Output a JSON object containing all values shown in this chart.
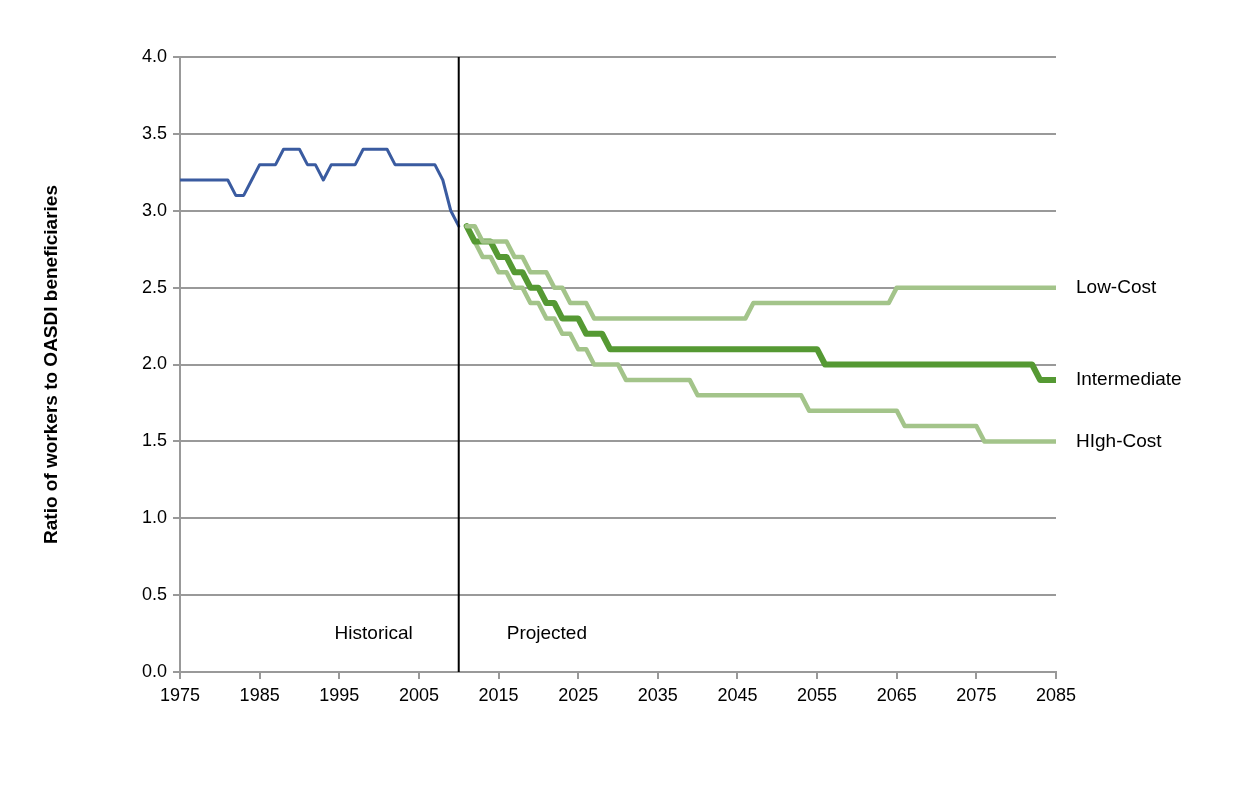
{
  "chart_data": {
    "type": "line",
    "ylabel": "Ratio of workers to OASDI beneficiaries",
    "xlim": [
      1975,
      2085
    ],
    "xticks": [
      1975,
      1985,
      1995,
      2005,
      2015,
      2025,
      2035,
      2045,
      2055,
      2065,
      2075,
      2085
    ],
    "ylim": [
      0,
      4
    ],
    "yticks": [
      {
        "value": 0,
        "label": "0.0"
      },
      0.5,
      {
        "value": 1,
        "label": "1.0"
      },
      1.5,
      {
        "value": 2,
        "label": "2.0"
      },
      2.5,
      {
        "value": 3,
        "label": "3.0"
      },
      3.5,
      {
        "value": 4,
        "label": "4.0"
      }
    ],
    "grid": "y",
    "legend": false,
    "marker": "none",
    "line_style": "solid",
    "ref_lines": [
      {
        "axis": "x",
        "value": 2010,
        "color": "#000000"
      }
    ],
    "annotations": [
      "Historical",
      "Projected"
    ],
    "series": [
      {
        "color": "#3a5ba0",
        "x": [
          1975,
          1981,
          1982,
          1983,
          1984,
          1985,
          1987,
          1988,
          1990,
          1991,
          1992,
          1993,
          1994,
          1997,
          1998,
          2001,
          2002,
          2007,
          2008,
          2009,
          2010
        ],
        "values": [
          3.2,
          3.2,
          3.1,
          3.1,
          3.2,
          3.3,
          3.3,
          3.4,
          3.4,
          3.3,
          3.3,
          3.2,
          3.3,
          3.3,
          3.4,
          3.4,
          3.3,
          3.3,
          3.2,
          3.0,
          2.9
        ]
      },
      {
        "name": "Low-Cost",
        "color": "#a3c48a",
        "x": [
          2011,
          2012,
          2013,
          2016,
          2017,
          2018,
          2019,
          2021,
          2022,
          2023,
          2024,
          2026,
          2027,
          2046,
          2047,
          2064,
          2065,
          2085
        ],
        "values": [
          2.9,
          2.9,
          2.8,
          2.8,
          2.7,
          2.7,
          2.6,
          2.6,
          2.5,
          2.5,
          2.4,
          2.4,
          2.3,
          2.3,
          2.4,
          2.4,
          2.5,
          2.5
        ]
      },
      {
        "name": "Intermediate",
        "color": "#559933",
        "x": [
          2011,
          2012,
          2014,
          2015,
          2016,
          2017,
          2018,
          2019,
          2020,
          2021,
          2022,
          2023,
          2025,
          2026,
          2028,
          2029,
          2055,
          2056,
          2082,
          2083,
          2085
        ],
        "values": [
          2.9,
          2.8,
          2.8,
          2.7,
          2.7,
          2.6,
          2.6,
          2.5,
          2.5,
          2.4,
          2.4,
          2.3,
          2.3,
          2.2,
          2.2,
          2.1,
          2.1,
          2.0,
          2.0,
          1.9,
          1.9
        ]
      },
      {
        "name": "HIgh-Cost",
        "color": "#a3c48a",
        "x": [
          2011,
          2012,
          2013,
          2014,
          2015,
          2016,
          2017,
          2018,
          2019,
          2020,
          2021,
          2022,
          2023,
          2024,
          2025,
          2026,
          2027,
          2030,
          2031,
          2039,
          2040,
          2053,
          2054,
          2065,
          2066,
          2075,
          2076,
          2085
        ],
        "values": [
          2.9,
          2.8,
          2.7,
          2.7,
          2.6,
          2.6,
          2.5,
          2.5,
          2.4,
          2.4,
          2.3,
          2.3,
          2.2,
          2.2,
          2.1,
          2.1,
          2.0,
          2.0,
          1.9,
          1.9,
          1.8,
          1.8,
          1.7,
          1.7,
          1.6,
          1.6,
          1.5,
          1.5
        ]
      }
    ]
  }
}
